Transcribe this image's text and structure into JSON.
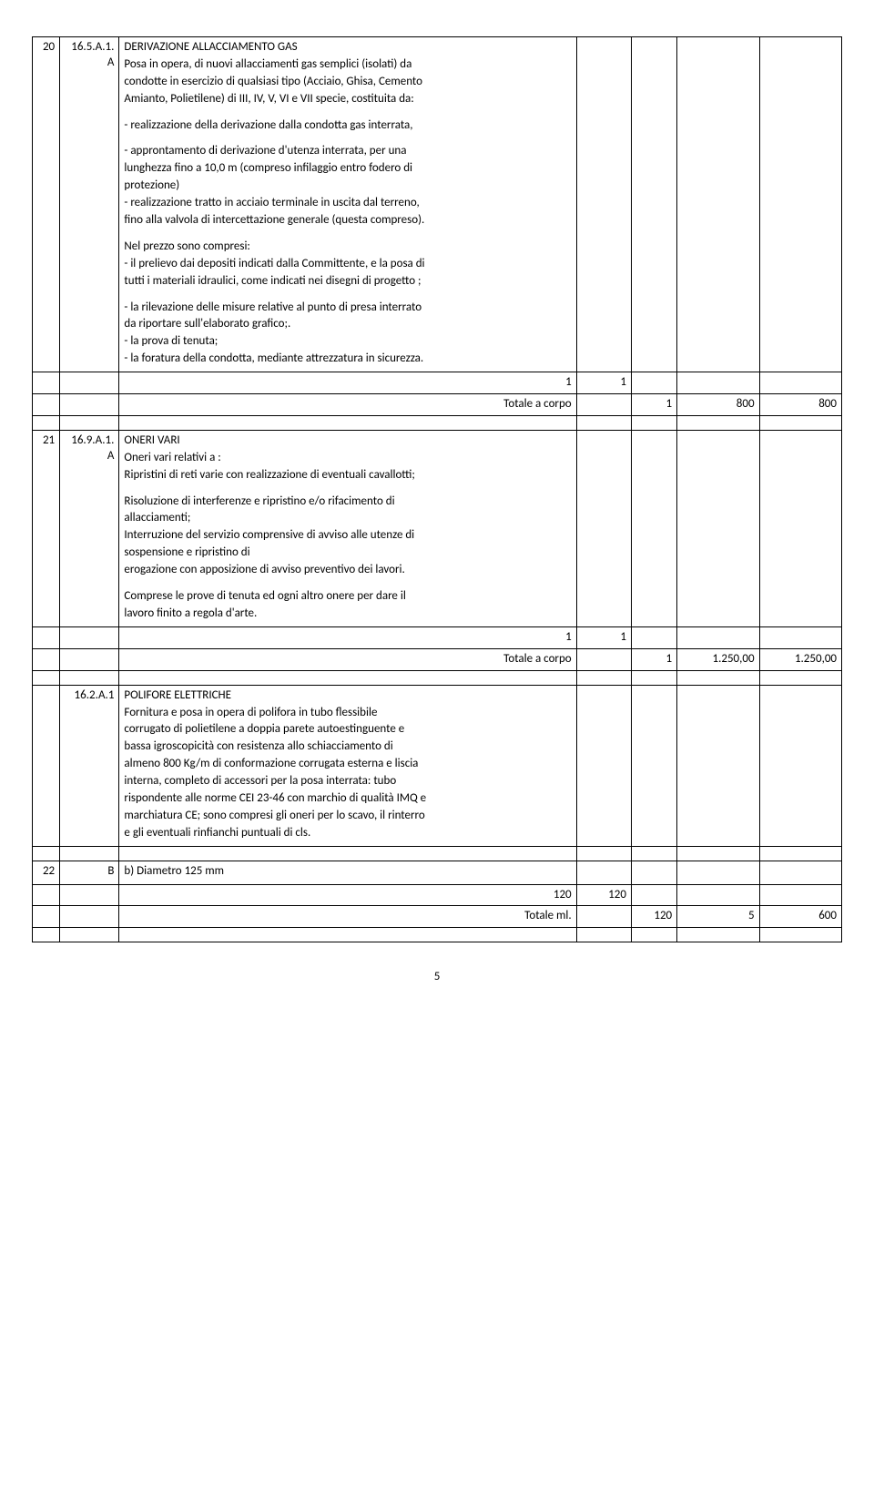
{
  "page_number": "5",
  "items": [
    {
      "num": "20",
      "code": "16.5.A.1.A",
      "title": "DERIVAZIONE ALLACCIAMENTO GAS",
      "lines": [
        "Posa in opera, di nuovi allacciamenti gas semplici (isolati) da",
        "condotte in esercizio di qualsiasi tipo (Acciaio, Ghisa, Cemento",
        "Amianto, Polietilene) di III, IV, V, VI e VII specie, costituita da:",
        "",
        "- realizzazione della derivazione dalla condotta gas interrata,",
        "",
        "- approntamento di derivazione d'utenza interrata, per una",
        "lunghezza fino a 10,0 m (compreso infilaggio entro fodero di",
        "protezione)",
        "- realizzazione tratto in acciaio terminale in uscita dal terreno,",
        "fino alla valvola di intercettazione generale (questa compreso).",
        "",
        "Nel prezzo sono compresi:",
        "- il prelievo dai depositi indicati dalla Committente, e la posa di",
        "tutti i materiali idraulici, come indicati nei disegni di progetto ;",
        "",
        "- la rilevazione delle misure relative al punto di presa interrato",
        "da riportare sull'elaborato grafico;.",
        "- la prova di tenuta;",
        "- la foratura della condotta, mediante attrezzatura in sicurezza."
      ],
      "qty_line": {
        "v1": "1",
        "v2": "1"
      },
      "total_line": {
        "label": "Totale a corpo",
        "q": "1",
        "p": "800",
        "t": "800"
      }
    },
    {
      "num": "21",
      "code": "16.9.A.1.A",
      "title": "ONERI VARI",
      "lines": [
        "Oneri vari relativi a :",
        "Ripristini di reti varie con realizzazione di eventuali cavallotti;",
        "",
        "Risoluzione di interferenze e ripristino e/o rifacimento di",
        "allacciamenti;",
        "Interruzione del servizio comprensive di avviso alle utenze di",
        "sospensione e ripristino di",
        "erogazione con apposizione di avviso preventivo dei lavori.",
        "",
        "Comprese le prove di tenuta ed ogni altro onere per dare il",
        "lavoro finito a regola d'arte."
      ],
      "qty_line": {
        "v1": "1",
        "v2": "1"
      },
      "total_line": {
        "label": "Totale a corpo",
        "q": "1",
        "p": "1.250,00",
        "t": "1.250,00"
      }
    },
    {
      "num": "",
      "code": "16.2.A.1",
      "title": "POLIFORE ELETTRICHE",
      "lines": [
        "Fornitura e posa in opera di polifora in tubo flessibile",
        "corrugato di polietilene a doppia parete autoestinguente e",
        "bassa igroscopicità con resistenza allo schiacciamento di",
        "almeno 800 Kg/m di conformazione corrugata esterna e liscia",
        "interna, completo di accessori per la posa interrata: tubo",
        "rispondente alle norme CEI 23-46 con marchio di qualità IMQ e",
        "marchiatura CE; sono compresi gli oneri per lo scavo, il rinterro",
        "e gli eventuali rinfianchi puntuali di cls."
      ]
    },
    {
      "num": "22",
      "code": "B",
      "title": "b) Diametro 125 mm",
      "qty_line": {
        "v1": "120",
        "v2": "120"
      },
      "total_line": {
        "label": "Totale ml.",
        "q": "120",
        "p": "5",
        "t": "600"
      }
    }
  ]
}
